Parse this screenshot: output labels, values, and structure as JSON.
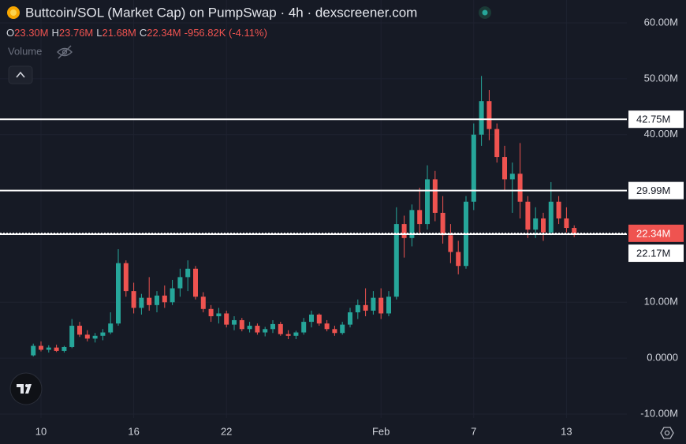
{
  "header": {
    "title": "Buttcoin/SOL (Market Cap) on PumpSwap · 4h · dexscreener.com",
    "ohlc": [
      {
        "key": "O",
        "value": "23.30M"
      },
      {
        "key": "H",
        "value": "23.76M"
      },
      {
        "key": "L",
        "value": "21.68M"
      },
      {
        "key": "C",
        "value": "22.34M"
      }
    ],
    "change": "-956.82K (-4.11%)",
    "volume_label": "Volume"
  },
  "chart_data": {
    "type": "candlestick",
    "categories": [
      null,
      "10",
      null,
      null,
      null,
      null,
      null,
      null,
      null,
      null,
      null,
      null,
      null,
      "16",
      null,
      null,
      null,
      null,
      null,
      null,
      null,
      null,
      null,
      null,
      null,
      "22",
      null,
      null,
      null,
      null,
      null,
      null,
      null,
      null,
      null,
      null,
      null,
      null,
      null,
      null,
      null,
      null,
      null,
      null,
      null,
      "Feb",
      null,
      null,
      null,
      null,
      null,
      null,
      null,
      null,
      null,
      null,
      null,
      "7",
      null,
      null,
      null,
      null,
      null,
      null,
      null,
      null,
      null,
      null,
      null,
      "13",
      null
    ],
    "open": [
      500000,
      2200000,
      1500000,
      1900000,
      1300000,
      2000000,
      5800000,
      4200000,
      3500000,
      4000000,
      4600000,
      6200000,
      17000000,
      12000000,
      9000000,
      10800000,
      9500000,
      11200000,
      10000000,
      12500000,
      14500000,
      16000000,
      11000000,
      8800000,
      7500000,
      8000000,
      6000000,
      6800000,
      5200000,
      5800000,
      4600000,
      5200000,
      6100000,
      4300000,
      4000000,
      4600000,
      6500000,
      7800000,
      6200000,
      5200000,
      4500000,
      6000000,
      8200000,
      9500000,
      8500000,
      10800000,
      8000000,
      11000000,
      24000000,
      21500000,
      26500000,
      24000000,
      32000000,
      26000000,
      22000000,
      19000000,
      16500000,
      28000000,
      40000000,
      46000000,
      41000000,
      36000000,
      32000000,
      33000000,
      28000000,
      23000000,
      25000000,
      22500000,
      28000000,
      25000000,
      23300000
    ],
    "high": [
      2600000,
      3000000,
      2300000,
      2400000,
      2200000,
      7000000,
      6500000,
      5000000,
      4500000,
      5200000,
      8200000,
      19500000,
      17500000,
      13500000,
      11500000,
      14500000,
      12000000,
      13000000,
      14000000,
      16000000,
      17500000,
      16500000,
      11800000,
      9500000,
      9000000,
      8500000,
      7500000,
      7200000,
      6500000,
      6200000,
      5600000,
      6800000,
      6500000,
      5000000,
      4900000,
      7200000,
      8500000,
      8000000,
      6800000,
      5800000,
      6500000,
      9000000,
      10500000,
      12500000,
      12000000,
      12500000,
      12000000,
      27000000,
      25500000,
      27500000,
      30500000,
      34500000,
      33500000,
      29000000,
      24000000,
      21000000,
      29000000,
      42000000,
      50500000,
      48000000,
      42000000,
      38000000,
      35000000,
      38500000,
      29000000,
      27000000,
      26000000,
      31500000,
      29000000,
      27000000,
      23760000
    ],
    "low": [
      300000,
      1200000,
      1000000,
      1100000,
      1000000,
      1800000,
      3800000,
      3000000,
      2800000,
      3200000,
      4300000,
      5800000,
      11000000,
      8000000,
      7800000,
      8500000,
      8200000,
      9000000,
      9500000,
      11000000,
      12000000,
      10500000,
      8200000,
      6500000,
      6200000,
      5500000,
      5000000,
      4800000,
      4600000,
      4200000,
      3900000,
      4500000,
      4000000,
      3400000,
      3400000,
      4200000,
      5500000,
      5800000,
      4800000,
      4000000,
      4200000,
      5500000,
      7000000,
      7500000,
      7800000,
      7000000,
      7500000,
      10500000,
      18000000,
      20000000,
      22000000,
      23000000,
      24500000,
      20500000,
      17000000,
      15000000,
      16000000,
      26500000,
      38000000,
      39000000,
      35000000,
      30000000,
      26000000,
      25000000,
      21500000,
      21500000,
      21000000,
      22000000,
      24000000,
      22500000,
      21680000
    ],
    "close": [
      2200000,
      1500000,
      1900000,
      1300000,
      2000000,
      5800000,
      4200000,
      3500000,
      4000000,
      4600000,
      6200000,
      17000000,
      12000000,
      9000000,
      10800000,
      9500000,
      11200000,
      10000000,
      12500000,
      14500000,
      16000000,
      11000000,
      8800000,
      7500000,
      8000000,
      6000000,
      6800000,
      5200000,
      5800000,
      4600000,
      5200000,
      6100000,
      4300000,
      4000000,
      4600000,
      6500000,
      7800000,
      6200000,
      5200000,
      4500000,
      6000000,
      8200000,
      9500000,
      8500000,
      10800000,
      8000000,
      11000000,
      24000000,
      21500000,
      26500000,
      24000000,
      32000000,
      26000000,
      22000000,
      19000000,
      16500000,
      28000000,
      40000000,
      46000000,
      41000000,
      36000000,
      32000000,
      33000000,
      28000000,
      23000000,
      25000000,
      22500000,
      28000000,
      25000000,
      23300000,
      22340000
    ],
    "up_color": "#26a69a",
    "down_color": "#ef5350",
    "ylim": [
      -11000000,
      64000000
    ],
    "yticks": [
      {
        "value": 60000000,
        "label": "60.00M"
      },
      {
        "value": 50000000,
        "label": "50.00M"
      },
      {
        "value": 40000000,
        "label": "40.00M"
      },
      {
        "value": 10000000,
        "label": "10.00M"
      },
      {
        "value": 0,
        "label": "0.0000"
      },
      {
        "value": -10000000,
        "label": "-10.00M"
      }
    ],
    "grid": true,
    "hlines": [
      {
        "value": 42750000,
        "label": "42.75M"
      },
      {
        "value": 29990000,
        "label": "29.99M"
      },
      {
        "value": 22170000,
        "label": "22.17M"
      }
    ],
    "current_price": {
      "value": 22340000,
      "label": "22.34M"
    }
  }
}
